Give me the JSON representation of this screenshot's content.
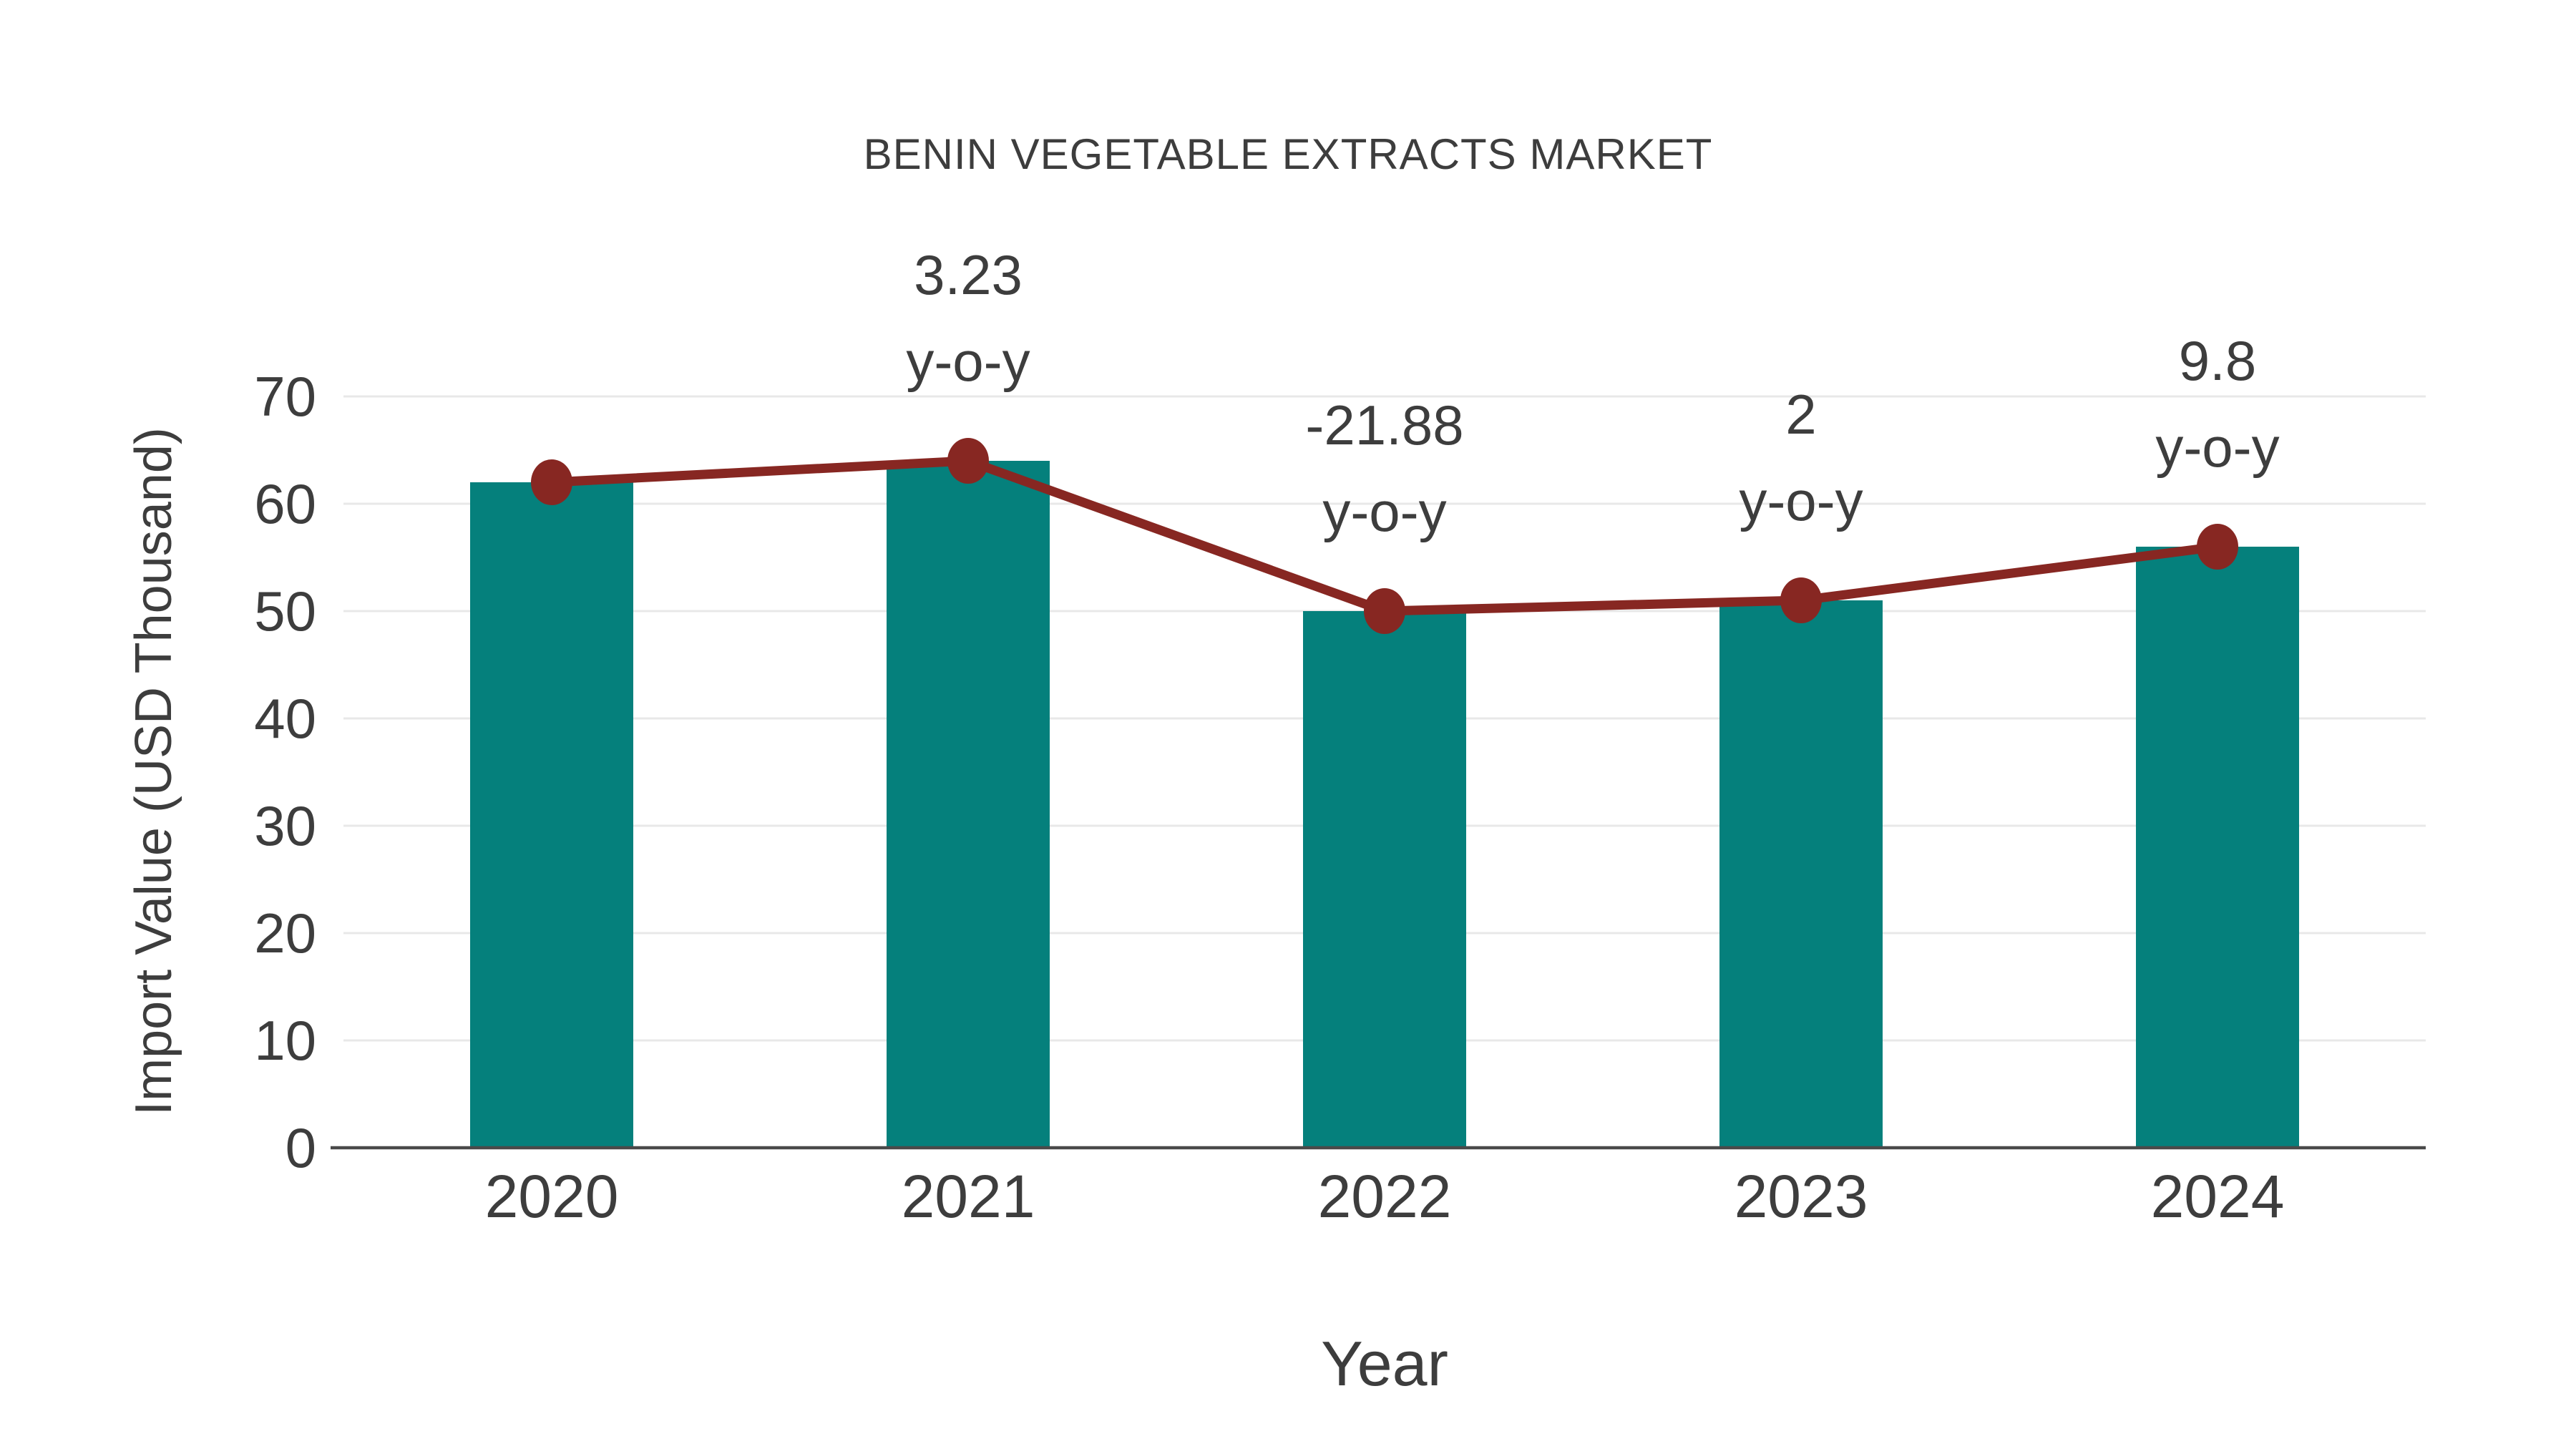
{
  "title": "BENIN VEGETABLE EXTRACTS MARKET",
  "chart_data": {
    "type": "bar",
    "subtype": "bar-with-line-overlay",
    "title": "BENIN VEGETABLE EXTRACTS MARKET",
    "xlabel": "Year",
    "ylabel": "Import Value (USD Thousand)",
    "categories": [
      "2020",
      "2021",
      "2022",
      "2023",
      "2024"
    ],
    "series": [
      {
        "name": "import-value-bars",
        "type": "bar",
        "values": [
          62,
          64,
          50,
          51,
          56
        ]
      },
      {
        "name": "import-value-trend-line",
        "type": "line",
        "values": [
          62,
          64,
          50,
          51,
          56
        ]
      }
    ],
    "annotations": [
      {
        "category": "2021",
        "value_label": "3.23",
        "suffix_label": "y-o-y"
      },
      {
        "category": "2022",
        "value_label": "-21.88",
        "suffix_label": "y-o-y"
      },
      {
        "category": "2023",
        "value_label": "2",
        "suffix_label": "y-o-y"
      },
      {
        "category": "2024",
        "value_label": "9.8",
        "suffix_label": "y-o-y"
      }
    ],
    "ylim": [
      0,
      70
    ],
    "yticks": [
      0,
      10,
      20,
      30,
      40,
      50,
      60,
      70
    ],
    "grid": true,
    "legend_position": "none"
  },
  "colors": {
    "bar": "#05807C",
    "line": "#872722",
    "marker": "#872722",
    "grid": "#e8e8e8",
    "axis": "#4a4a4a",
    "text": "#3d3d3d",
    "background": "#ffffff"
  }
}
